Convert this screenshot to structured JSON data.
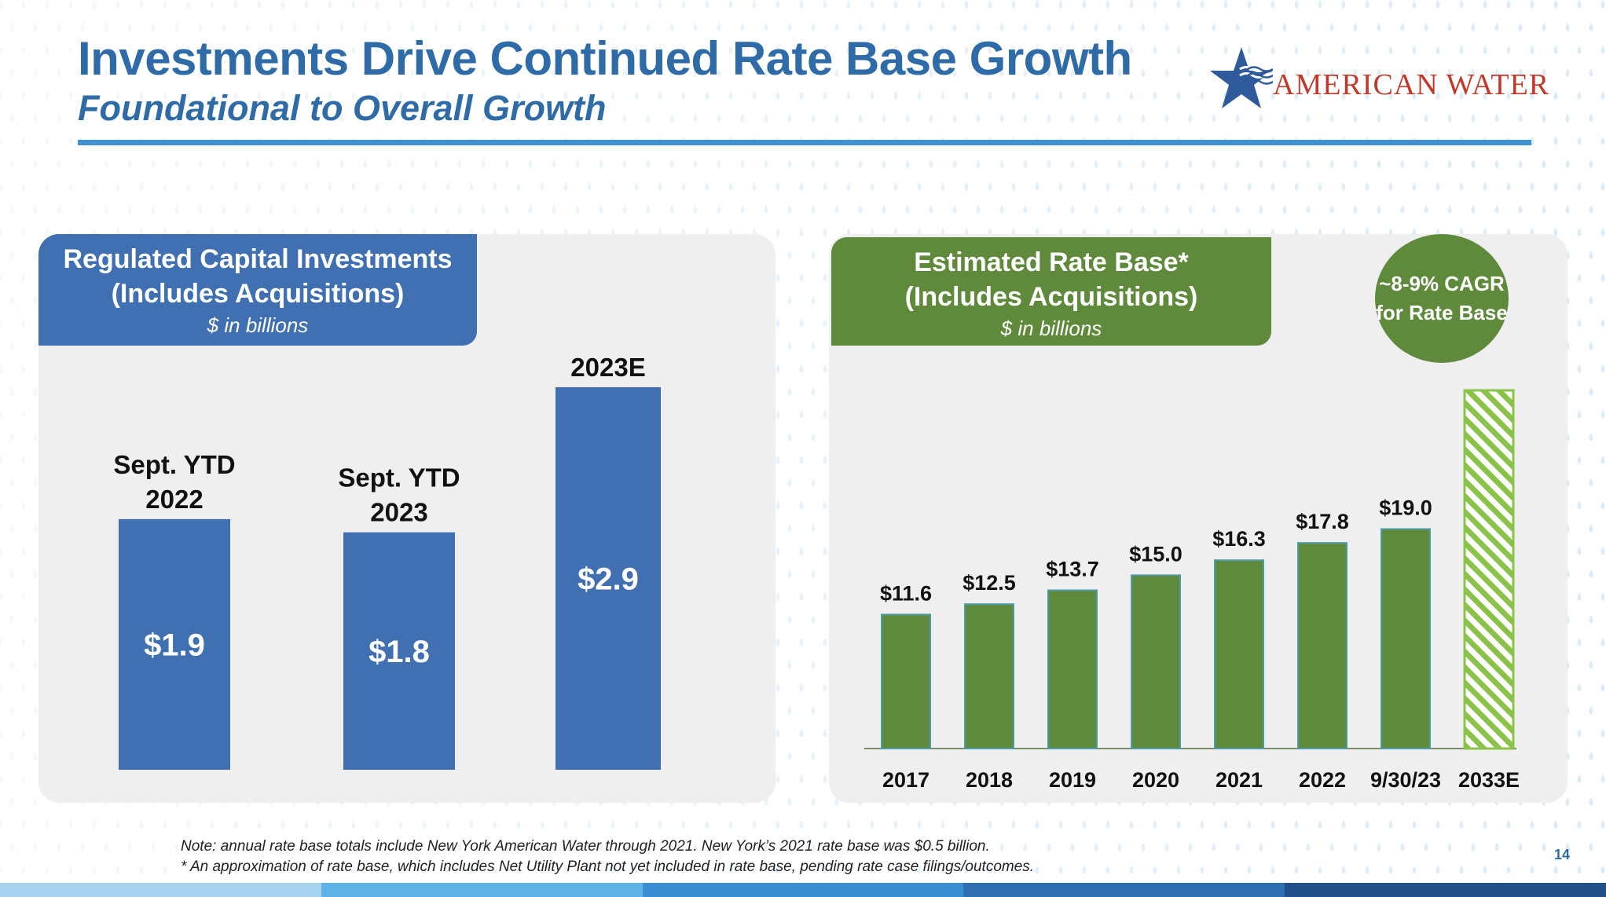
{
  "header": {
    "title": "Investments Drive Continued Rate Base Growth",
    "subtitle": "Foundational to Overall Growth",
    "logo_text": "AMERICAN WATER"
  },
  "colors": {
    "title_blue": "#2f6ca7",
    "bar_blue": "#4070b2",
    "bar_green": "#5f8a3c",
    "hatch_green": "#8bc34a",
    "panel_gray": "#efefef"
  },
  "left_panel": {
    "title_line1": "Regulated Capital Investments",
    "title_line2": "(Includes Acquisitions)",
    "units": "$ in billions"
  },
  "right_panel": {
    "title_line1": "Estimated Rate Base*",
    "title_line2": "(Includes Acquisitions)",
    "units": "$ in billions",
    "cagr_line1": "~8-9% CAGR",
    "cagr_line2": "for Rate Base"
  },
  "chart_data": [
    {
      "type": "bar",
      "title": "Regulated Capital Investments (Includes Acquisitions)",
      "units": "$ in billions",
      "ylim": [
        0,
        2.9
      ],
      "grid": false,
      "categories": [
        [
          "Sept. YTD",
          "2022"
        ],
        [
          "Sept. YTD",
          "2023"
        ],
        [
          "2023E"
        ]
      ],
      "values": [
        1.9,
        1.8,
        2.9
      ],
      "data_labels": [
        "$1.9",
        "$1.8",
        "$2.9"
      ]
    },
    {
      "type": "bar",
      "title": "Estimated Rate Base* (Includes Acquisitions)",
      "units": "$ in billions",
      "ylim": [
        0,
        31
      ],
      "grid": false,
      "categories": [
        "2017",
        "2018",
        "2019",
        "2020",
        "2021",
        "2022",
        "9/30/23",
        "2033E"
      ],
      "values": [
        11.6,
        12.5,
        13.7,
        15.0,
        16.3,
        17.8,
        19.0,
        31.0
      ],
      "data_labels": [
        "$11.6",
        "$12.5",
        "$13.7",
        "$15.0",
        "$16.3",
        "$17.8",
        "$19.0",
        ""
      ],
      "estimated_category": "2033E"
    }
  ],
  "notes": {
    "line1": "Note: annual rate base totals include New York American Water through 2021.  New York’s 2021 rate base was $0.5 billion.",
    "line2": "* An approximation of rate base, which includes Net Utility Plant not yet included in rate base, pending rate case filings/outcomes."
  },
  "page_number": "14"
}
